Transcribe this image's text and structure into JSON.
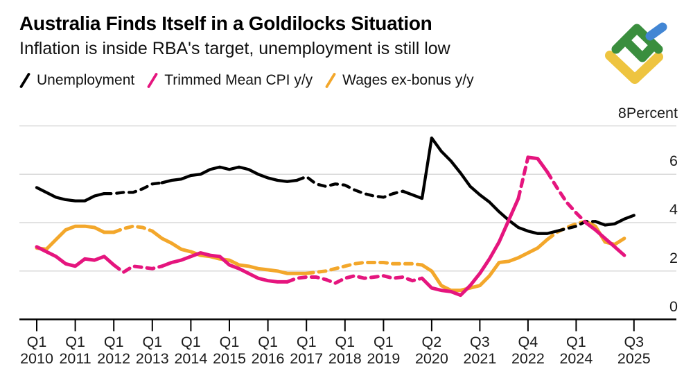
{
  "header": {
    "title": "Australia Finds Itself in a Goldilocks Situation",
    "subtitle": "Inflation is inside RBA's target, unemployment is still low"
  },
  "legend": [
    {
      "label": "Unemployment",
      "color": "#000000"
    },
    {
      "label": "Trimmed Mean CPI y/y",
      "color": "#e5157e"
    },
    {
      "label": "Wages ex-bonus y/y",
      "color": "#f3a72b"
    }
  ],
  "logo": {
    "name": "litefinance-logo",
    "colors": {
      "green": "#3a8e3e",
      "blue": "#4286d4",
      "yellow": "#eec440"
    }
  },
  "chart_data": {
    "type": "line",
    "title": "Australia Finds Itself in a Goldilocks Situation",
    "subtitle": "Inflation is inside RBA's target, unemployment is still low",
    "unit_label": "Percent",
    "ylim": [
      0,
      8
    ],
    "grid": "horizontal",
    "legend_position": "top-left",
    "axis_side": "right",
    "frequency": "quarterly",
    "start_quarter": "Q1 2010",
    "grid_color": "#d8d8d8",
    "y_ticks": [
      {
        "value": 8,
        "label": "8",
        "unit": "Percent"
      },
      {
        "value": 6,
        "label": "6"
      },
      {
        "value": 4,
        "label": "4"
      },
      {
        "value": 2,
        "label": "2"
      },
      {
        "value": 0,
        "label": "0"
      }
    ],
    "x_ticks": [
      {
        "index": 0,
        "quarter": "Q1",
        "year": "2010"
      },
      {
        "index": 4,
        "quarter": "Q1",
        "year": "2011"
      },
      {
        "index": 8,
        "quarter": "Q1",
        "year": "2012"
      },
      {
        "index": 12,
        "quarter": "Q1",
        "year": "2013"
      },
      {
        "index": 16,
        "quarter": "Q1",
        "year": "2014"
      },
      {
        "index": 20,
        "quarter": "Q1",
        "year": "2015"
      },
      {
        "index": 24,
        "quarter": "Q1",
        "year": "2016"
      },
      {
        "index": 28,
        "quarter": "Q1",
        "year": "2017"
      },
      {
        "index": 32,
        "quarter": "Q1",
        "year": "2018"
      },
      {
        "index": 36,
        "quarter": "Q1",
        "year": "2019"
      },
      {
        "index": 41,
        "quarter": "Q2",
        "year": "2020"
      },
      {
        "index": 46,
        "quarter": "Q3",
        "year": "2021"
      },
      {
        "index": 51,
        "quarter": "Q4",
        "year": "2022"
      },
      {
        "index": 56,
        "quarter": "Q1",
        "year": "2024"
      },
      {
        "index": 62,
        "quarter": "Q3",
        "year": "2025"
      }
    ],
    "series": [
      {
        "name": "Wages ex-bonus y/y",
        "color": "#f3a72b",
        "stroke_width": 5,
        "start_index": 0,
        "dash_ranges": [
          [
            8,
            12
          ],
          [
            28,
            40
          ],
          [
            53,
            57
          ]
        ],
        "values": [
          2.95,
          2.9,
          3.3,
          3.7,
          3.85,
          3.85,
          3.8,
          3.6,
          3.6,
          3.75,
          3.85,
          3.8,
          3.65,
          3.35,
          3.15,
          2.9,
          2.8,
          2.65,
          2.6,
          2.5,
          2.45,
          2.25,
          2.2,
          2.1,
          2.05,
          2.0,
          1.9,
          1.9,
          1.9,
          1.95,
          2.0,
          2.1,
          2.2,
          2.3,
          2.35,
          2.35,
          2.35,
          2.3,
          2.3,
          2.3,
          2.25,
          2.0,
          1.4,
          1.2,
          1.2,
          1.3,
          1.4,
          1.8,
          2.35,
          2.4,
          2.55,
          2.75,
          2.95,
          3.3,
          3.6,
          3.8,
          3.95,
          4.05,
          3.85,
          3.2,
          3.1,
          3.35
        ]
      },
      {
        "name": "Unemployment",
        "color": "#000000",
        "stroke_width": 4.3,
        "start_index": 0,
        "dash_ranges": [
          [
            7,
            13
          ],
          [
            27,
            38
          ],
          [
            54,
            58
          ]
        ],
        "values": [
          5.45,
          5.25,
          5.05,
          4.95,
          4.9,
          4.9,
          5.1,
          5.2,
          5.2,
          5.25,
          5.25,
          5.4,
          5.6,
          5.65,
          5.75,
          5.8,
          5.95,
          6.0,
          6.2,
          6.3,
          6.2,
          6.3,
          6.2,
          6.0,
          5.85,
          5.75,
          5.7,
          5.75,
          5.9,
          5.6,
          5.5,
          5.6,
          5.55,
          5.35,
          5.2,
          5.1,
          5.05,
          5.2,
          5.3,
          5.15,
          5.0,
          7.5,
          6.95,
          6.55,
          6.05,
          5.5,
          5.15,
          4.85,
          4.45,
          4.1,
          3.8,
          3.65,
          3.55,
          3.55,
          3.65,
          3.75,
          3.85,
          4.05,
          4.05,
          3.9,
          3.95,
          4.15,
          4.3
        ]
      },
      {
        "name": "Trimmed Mean CPI y/y",
        "color": "#e5157e",
        "stroke_width": 5,
        "start_index": 0,
        "dash_ranges": [
          [
            8,
            13
          ],
          [
            26,
            40
          ],
          [
            50,
            51
          ],
          [
            53,
            57
          ]
        ],
        "values": [
          3.0,
          2.8,
          2.6,
          2.3,
          2.2,
          2.5,
          2.45,
          2.6,
          2.25,
          1.95,
          2.2,
          2.15,
          2.1,
          2.2,
          2.35,
          2.45,
          2.6,
          2.75,
          2.65,
          2.6,
          2.25,
          2.1,
          1.9,
          1.7,
          1.6,
          1.55,
          1.55,
          1.7,
          1.75,
          1.75,
          1.65,
          1.5,
          1.7,
          1.8,
          1.7,
          1.75,
          1.8,
          1.7,
          1.75,
          1.6,
          1.7,
          1.3,
          1.2,
          1.15,
          1.0,
          1.4,
          1.9,
          2.5,
          3.2,
          4.1,
          5.0,
          6.7,
          6.65,
          6.1,
          5.45,
          4.85,
          4.4,
          4.0,
          3.7,
          3.35,
          3.0,
          2.65
        ]
      }
    ]
  }
}
